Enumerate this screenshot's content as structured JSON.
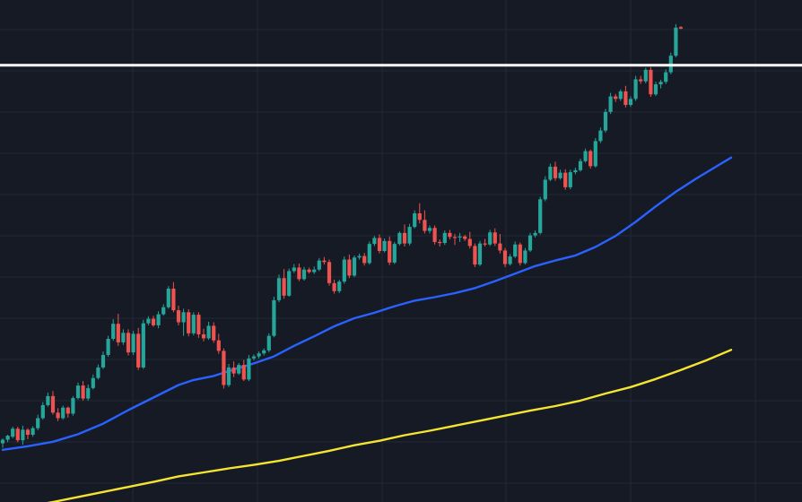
{
  "chart_data": {
    "type": "candlestick",
    "colors": {
      "background": "#161a25",
      "grid": "#232836",
      "up": "#26a69a",
      "down": "#ef5350",
      "ma_fast": "#2962ff",
      "ma_slow": "#f5e431",
      "level_line": "#ffffff"
    },
    "grid": true,
    "y_range": [
      0,
      100
    ],
    "x_range": [
      0,
      160
    ],
    "horizontal_level": 87,
    "candles": [
      {
        "o": 11.7,
        "h": 12.7,
        "l": 10.8,
        "c": 12.4
      },
      {
        "o": 12.4,
        "h": 13.4,
        "l": 11.9,
        "c": 13.2
      },
      {
        "o": 13.0,
        "h": 15.0,
        "l": 12.7,
        "c": 14.6
      },
      {
        "o": 14.6,
        "h": 15.0,
        "l": 11.9,
        "c": 12.3
      },
      {
        "o": 12.3,
        "h": 15.2,
        "l": 11.4,
        "c": 14.4
      },
      {
        "o": 14.4,
        "h": 14.7,
        "l": 12.5,
        "c": 13.4
      },
      {
        "o": 13.4,
        "h": 15.1,
        "l": 13.0,
        "c": 14.7
      },
      {
        "o": 14.7,
        "h": 17.4,
        "l": 14.3,
        "c": 16.7
      },
      {
        "o": 16.7,
        "h": 19.9,
        "l": 16.4,
        "c": 19.3
      },
      {
        "o": 19.3,
        "h": 21.8,
        "l": 19.0,
        "c": 21.1
      },
      {
        "o": 21.1,
        "h": 22.1,
        "l": 17.4,
        "c": 17.8
      },
      {
        "o": 17.8,
        "h": 18.7,
        "l": 16.1,
        "c": 16.7
      },
      {
        "o": 16.7,
        "h": 19.2,
        "l": 16.4,
        "c": 18.8
      },
      {
        "o": 18.8,
        "h": 19.0,
        "l": 16.8,
        "c": 17.6
      },
      {
        "o": 17.6,
        "h": 21.1,
        "l": 17.2,
        "c": 20.7
      },
      {
        "o": 20.7,
        "h": 23.8,
        "l": 20.4,
        "c": 23.2
      },
      {
        "o": 23.2,
        "h": 24.1,
        "l": 20.2,
        "c": 20.6
      },
      {
        "o": 20.6,
        "h": 23.4,
        "l": 20.2,
        "c": 22.7
      },
      {
        "o": 22.7,
        "h": 25.4,
        "l": 22.4,
        "c": 24.7
      },
      {
        "o": 24.7,
        "h": 27.4,
        "l": 24.4,
        "c": 26.8
      },
      {
        "o": 26.8,
        "h": 30.0,
        "l": 26.5,
        "c": 29.3
      },
      {
        "o": 29.3,
        "h": 33.1,
        "l": 28.9,
        "c": 32.5
      },
      {
        "o": 32.5,
        "h": 36.4,
        "l": 32.1,
        "c": 35.5
      },
      {
        "o": 35.5,
        "h": 37.5,
        "l": 31.1,
        "c": 31.8
      },
      {
        "o": 31.8,
        "h": 34.4,
        "l": 31.3,
        "c": 33.7
      },
      {
        "o": 33.7,
        "h": 34.4,
        "l": 29.2,
        "c": 29.8
      },
      {
        "o": 29.8,
        "h": 34.1,
        "l": 29.3,
        "c": 33.5
      },
      {
        "o": 33.5,
        "h": 34.7,
        "l": 26.3,
        "c": 26.8
      },
      {
        "o": 26.8,
        "h": 36.3,
        "l": 26.5,
        "c": 35.6
      },
      {
        "o": 35.6,
        "h": 37.0,
        "l": 35.2,
        "c": 36.5
      },
      {
        "o": 36.5,
        "h": 37.1,
        "l": 34.9,
        "c": 35.2
      },
      {
        "o": 35.2,
        "h": 38.0,
        "l": 34.6,
        "c": 37.4
      },
      {
        "o": 37.4,
        "h": 39.4,
        "l": 37.1,
        "c": 38.8
      },
      {
        "o": 38.8,
        "h": 43.0,
        "l": 38.5,
        "c": 42.5
      },
      {
        "o": 42.5,
        "h": 43.8,
        "l": 37.8,
        "c": 38.2
      },
      {
        "o": 38.2,
        "h": 39.1,
        "l": 35.2,
        "c": 35.8
      },
      {
        "o": 35.8,
        "h": 38.5,
        "l": 33.1,
        "c": 37.8
      },
      {
        "o": 37.8,
        "h": 38.4,
        "l": 33.0,
        "c": 33.6
      },
      {
        "o": 33.6,
        "h": 37.8,
        "l": 33.2,
        "c": 37.3
      },
      {
        "o": 37.3,
        "h": 37.8,
        "l": 32.7,
        "c": 33.4
      },
      {
        "o": 33.4,
        "h": 34.5,
        "l": 32.0,
        "c": 32.6
      },
      {
        "o": 32.6,
        "h": 35.9,
        "l": 32.3,
        "c": 35.1
      },
      {
        "o": 35.1,
        "h": 35.8,
        "l": 31.7,
        "c": 32.2
      },
      {
        "o": 32.2,
        "h": 33.5,
        "l": 29.5,
        "c": 30.1
      },
      {
        "o": 30.1,
        "h": 30.6,
        "l": 22.6,
        "c": 23.3
      },
      {
        "o": 23.3,
        "h": 27.5,
        "l": 22.9,
        "c": 26.8
      },
      {
        "o": 26.8,
        "h": 28.0,
        "l": 24.9,
        "c": 25.6
      },
      {
        "o": 25.6,
        "h": 27.7,
        "l": 25.3,
        "c": 27.3
      },
      {
        "o": 27.3,
        "h": 28.3,
        "l": 24.1,
        "c": 24.4
      },
      {
        "o": 24.4,
        "h": 29.3,
        "l": 24.1,
        "c": 28.6
      },
      {
        "o": 28.6,
        "h": 29.4,
        "l": 28.2,
        "c": 29.0
      },
      {
        "o": 29.0,
        "h": 30.0,
        "l": 28.6,
        "c": 29.6
      },
      {
        "o": 29.6,
        "h": 30.6,
        "l": 29.2,
        "c": 30.2
      },
      {
        "o": 30.2,
        "h": 33.6,
        "l": 29.8,
        "c": 33.1
      },
      {
        "o": 33.1,
        "h": 40.9,
        "l": 32.8,
        "c": 40.2
      },
      {
        "o": 40.2,
        "h": 45.3,
        "l": 39.8,
        "c": 44.6
      },
      {
        "o": 44.6,
        "h": 46.4,
        "l": 40.5,
        "c": 41.1
      },
      {
        "o": 41.1,
        "h": 46.5,
        "l": 40.9,
        "c": 46.0
      },
      {
        "o": 46.0,
        "h": 47.4,
        "l": 45.6,
        "c": 46.7
      },
      {
        "o": 46.7,
        "h": 47.5,
        "l": 44.0,
        "c": 44.4
      },
      {
        "o": 44.4,
        "h": 46.8,
        "l": 44.1,
        "c": 46.3
      },
      {
        "o": 46.3,
        "h": 46.7,
        "l": 45.5,
        "c": 45.8
      },
      {
        "o": 45.8,
        "h": 46.9,
        "l": 45.4,
        "c": 46.3
      },
      {
        "o": 46.3,
        "h": 48.6,
        "l": 46.0,
        "c": 48.1
      },
      {
        "o": 48.1,
        "h": 48.8,
        "l": 47.3,
        "c": 47.8
      },
      {
        "o": 47.8,
        "h": 48.3,
        "l": 43.1,
        "c": 43.6
      },
      {
        "o": 43.6,
        "h": 44.3,
        "l": 41.5,
        "c": 42.0
      },
      {
        "o": 42.0,
        "h": 44.3,
        "l": 41.6,
        "c": 43.9
      },
      {
        "o": 43.9,
        "h": 48.9,
        "l": 43.5,
        "c": 48.3
      },
      {
        "o": 48.3,
        "h": 49.3,
        "l": 44.6,
        "c": 45.1
      },
      {
        "o": 45.1,
        "h": 49.1,
        "l": 44.8,
        "c": 48.7
      },
      {
        "o": 48.7,
        "h": 49.5,
        "l": 48.3,
        "c": 49.0
      },
      {
        "o": 49.0,
        "h": 49.6,
        "l": 47.1,
        "c": 47.6
      },
      {
        "o": 47.6,
        "h": 51.9,
        "l": 47.3,
        "c": 51.4
      },
      {
        "o": 51.4,
        "h": 53.0,
        "l": 51.0,
        "c": 52.6
      },
      {
        "o": 52.6,
        "h": 53.3,
        "l": 49.5,
        "c": 50.0
      },
      {
        "o": 50.0,
        "h": 52.5,
        "l": 49.7,
        "c": 52.0
      },
      {
        "o": 52.0,
        "h": 52.9,
        "l": 47.2,
        "c": 47.7
      },
      {
        "o": 47.7,
        "h": 51.8,
        "l": 47.4,
        "c": 51.4
      },
      {
        "o": 51.4,
        "h": 53.9,
        "l": 51.1,
        "c": 53.6
      },
      {
        "o": 53.6,
        "h": 55.3,
        "l": 50.9,
        "c": 51.5
      },
      {
        "o": 51.5,
        "h": 55.4,
        "l": 51.1,
        "c": 54.8
      },
      {
        "o": 54.8,
        "h": 58.1,
        "l": 54.5,
        "c": 57.5
      },
      {
        "o": 57.5,
        "h": 59.5,
        "l": 55.5,
        "c": 56.2
      },
      {
        "o": 56.2,
        "h": 58.1,
        "l": 53.5,
        "c": 54.0
      },
      {
        "o": 54.0,
        "h": 55.1,
        "l": 53.5,
        "c": 54.6
      },
      {
        "o": 54.6,
        "h": 55.1,
        "l": 51.3,
        "c": 51.8
      },
      {
        "o": 51.8,
        "h": 52.3,
        "l": 50.9,
        "c": 51.6
      },
      {
        "o": 51.6,
        "h": 54.1,
        "l": 51.2,
        "c": 53.6
      },
      {
        "o": 53.6,
        "h": 54.2,
        "l": 52.3,
        "c": 52.8
      },
      {
        "o": 52.8,
        "h": 53.4,
        "l": 51.2,
        "c": 52.7
      },
      {
        "o": 52.7,
        "h": 53.6,
        "l": 51.8,
        "c": 52.9
      },
      {
        "o": 52.9,
        "h": 53.2,
        "l": 52.0,
        "c": 52.4
      },
      {
        "o": 52.4,
        "h": 53.8,
        "l": 50.5,
        "c": 51.0
      },
      {
        "o": 51.0,
        "h": 51.5,
        "l": 46.8,
        "c": 47.3
      },
      {
        "o": 47.3,
        "h": 52.0,
        "l": 47.0,
        "c": 51.5
      },
      {
        "o": 51.5,
        "h": 52.4,
        "l": 50.9,
        "c": 51.3
      },
      {
        "o": 51.3,
        "h": 54.2,
        "l": 51.0,
        "c": 53.7
      },
      {
        "o": 53.7,
        "h": 54.5,
        "l": 51.0,
        "c": 51.5
      },
      {
        "o": 51.5,
        "h": 53.4,
        "l": 49.5,
        "c": 50.1
      },
      {
        "o": 50.1,
        "h": 50.6,
        "l": 46.8,
        "c": 47.4
      },
      {
        "o": 47.4,
        "h": 49.4,
        "l": 47.1,
        "c": 48.9
      },
      {
        "o": 48.9,
        "h": 51.9,
        "l": 48.6,
        "c": 51.3
      },
      {
        "o": 51.3,
        "h": 51.7,
        "l": 47.1,
        "c": 47.6
      },
      {
        "o": 47.6,
        "h": 50.6,
        "l": 47.3,
        "c": 50.1
      },
      {
        "o": 50.1,
        "h": 53.6,
        "l": 49.8,
        "c": 53.1
      },
      {
        "o": 53.1,
        "h": 54.1,
        "l": 52.7,
        "c": 53.6
      },
      {
        "o": 53.6,
        "h": 60.8,
        "l": 53.3,
        "c": 60.3
      },
      {
        "o": 60.3,
        "h": 64.9,
        "l": 59.9,
        "c": 64.2
      },
      {
        "o": 64.2,
        "h": 67.4,
        "l": 63.9,
        "c": 66.8
      },
      {
        "o": 66.8,
        "h": 67.8,
        "l": 64.0,
        "c": 64.5
      },
      {
        "o": 64.5,
        "h": 66.2,
        "l": 64.2,
        "c": 65.6
      },
      {
        "o": 65.6,
        "h": 66.3,
        "l": 62.2,
        "c": 62.7
      },
      {
        "o": 62.7,
        "h": 66.2,
        "l": 62.3,
        "c": 65.7
      },
      {
        "o": 65.7,
        "h": 66.6,
        "l": 65.3,
        "c": 66.1
      },
      {
        "o": 66.1,
        "h": 68.4,
        "l": 65.8,
        "c": 67.9
      },
      {
        "o": 67.9,
        "h": 70.4,
        "l": 67.6,
        "c": 69.9
      },
      {
        "o": 69.9,
        "h": 70.2,
        "l": 66.4,
        "c": 66.9
      },
      {
        "o": 66.9,
        "h": 72.5,
        "l": 66.6,
        "c": 71.9
      },
      {
        "o": 71.9,
        "h": 74.6,
        "l": 71.5,
        "c": 74.0
      },
      {
        "o": 74.0,
        "h": 78.3,
        "l": 73.6,
        "c": 77.7
      },
      {
        "o": 77.7,
        "h": 81.5,
        "l": 77.3,
        "c": 80.8
      },
      {
        "o": 80.8,
        "h": 81.3,
        "l": 79.7,
        "c": 80.3
      },
      {
        "o": 80.3,
        "h": 82.2,
        "l": 79.9,
        "c": 81.8
      },
      {
        "o": 81.8,
        "h": 82.9,
        "l": 78.6,
        "c": 79.1
      },
      {
        "o": 79.1,
        "h": 80.8,
        "l": 78.7,
        "c": 80.3
      },
      {
        "o": 80.3,
        "h": 84.9,
        "l": 79.9,
        "c": 84.2
      },
      {
        "o": 84.2,
        "h": 84.9,
        "l": 83.3,
        "c": 83.8
      },
      {
        "o": 83.8,
        "h": 86.5,
        "l": 83.4,
        "c": 86.1
      },
      {
        "o": 86.1,
        "h": 86.6,
        "l": 80.7,
        "c": 81.2
      },
      {
        "o": 81.2,
        "h": 83.7,
        "l": 80.9,
        "c": 83.2
      },
      {
        "o": 83.2,
        "h": 84.1,
        "l": 82.4,
        "c": 83.7
      },
      {
        "o": 83.7,
        "h": 86.2,
        "l": 83.3,
        "c": 85.6
      },
      {
        "o": 85.6,
        "h": 89.5,
        "l": 85.2,
        "c": 88.9
      },
      {
        "o": 88.9,
        "h": 95.2,
        "l": 88.6,
        "c": 94.5
      },
      {
        "o": 94.6,
        "h": 94.8,
        "l": 94.2,
        "c": 94.3
      }
    ],
    "ma_fast": [
      [
        0,
        10.4
      ],
      [
        5,
        11.1
      ],
      [
        10,
        12.0
      ],
      [
        15,
        13.5
      ],
      [
        20,
        15.6
      ],
      [
        25,
        18.3
      ],
      [
        30,
        20.8
      ],
      [
        35,
        23.3
      ],
      [
        38,
        24.3
      ],
      [
        42,
        25.1
      ],
      [
        46,
        26.4
      ],
      [
        50,
        27.6
      ],
      [
        54,
        29.0
      ],
      [
        58,
        31.1
      ],
      [
        62,
        33.0
      ],
      [
        66,
        35.0
      ],
      [
        70,
        36.6
      ],
      [
        74,
        37.7
      ],
      [
        78,
        39.0
      ],
      [
        82,
        40.1
      ],
      [
        86,
        40.8
      ],
      [
        90,
        41.6
      ],
      [
        94,
        42.6
      ],
      [
        98,
        44.0
      ],
      [
        102,
        45.5
      ],
      [
        106,
        47.0
      ],
      [
        110,
        48.1
      ],
      [
        114,
        49.1
      ],
      [
        118,
        50.8
      ],
      [
        122,
        53.0
      ],
      [
        126,
        55.8
      ],
      [
        130,
        58.9
      ],
      [
        134,
        61.8
      ],
      [
        138,
        64.4
      ],
      [
        142,
        66.8
      ],
      [
        145,
        68.6
      ]
    ],
    "ma_slow": [
      [
        0,
        -1.6
      ],
      [
        5,
        -0.9
      ],
      [
        10,
        0.0
      ],
      [
        15,
        1.0
      ],
      [
        20,
        2.0
      ],
      [
        25,
        3.0
      ],
      [
        30,
        4.0
      ],
      [
        35,
        5.1
      ],
      [
        40,
        5.9
      ],
      [
        45,
        6.7
      ],
      [
        50,
        7.4
      ],
      [
        55,
        8.2
      ],
      [
        60,
        9.2
      ],
      [
        65,
        10.2
      ],
      [
        70,
        11.3
      ],
      [
        75,
        12.2
      ],
      [
        80,
        13.3
      ],
      [
        85,
        14.2
      ],
      [
        90,
        15.2
      ],
      [
        95,
        16.2
      ],
      [
        100,
        17.2
      ],
      [
        105,
        18.2
      ],
      [
        110,
        19.1
      ],
      [
        115,
        20.2
      ],
      [
        120,
        21.6
      ],
      [
        125,
        22.9
      ],
      [
        130,
        24.5
      ],
      [
        135,
        26.3
      ],
      [
        140,
        28.2
      ],
      [
        145,
        30.3
      ]
    ]
  }
}
